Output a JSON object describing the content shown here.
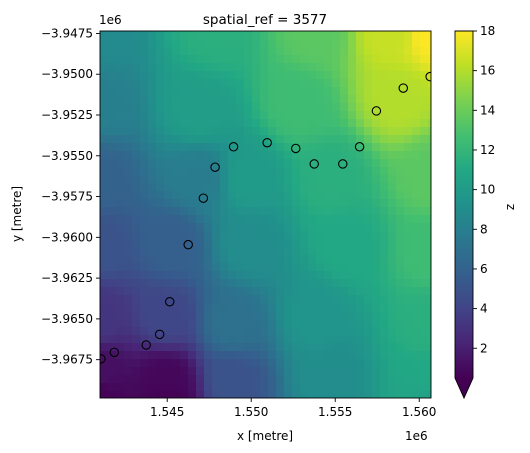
{
  "chart_data": {
    "type": "heatmap",
    "title": "spatial_ref = 3577",
    "xlabel": "x [metre]",
    "ylabel": "y [metre]",
    "x_offset_label": "1e6",
    "y_offset_label": "1e6",
    "xlim": [
      1.541,
      1.5607
    ],
    "ylim": [
      -3.96985,
      -3.94735
    ],
    "x_ticks": [
      1.545,
      1.55,
      1.555,
      1.56
    ],
    "x_tick_labels": [
      "1.545",
      "1.550",
      "1.555",
      "1.560"
    ],
    "y_ticks": [
      -3.9675,
      -3.965,
      -3.9625,
      -3.96,
      -3.9575,
      -3.955,
      -3.9525,
      -3.95,
      -3.9475
    ],
    "y_tick_labels": [
      "−3.9675",
      "−3.9650",
      "−3.9625",
      "−3.9600",
      "−3.9575",
      "−3.9550",
      "−3.9525",
      "−3.9500",
      "−3.9475"
    ],
    "colorbar": {
      "label": "z",
      "vmin": 0.5,
      "vmax": 18,
      "ticks": [
        2,
        4,
        6,
        8,
        10,
        12,
        14,
        16,
        18
      ],
      "tick_labels": [
        "2",
        "4",
        "6",
        "8",
        "10",
        "12",
        "14",
        "16",
        "18"
      ],
      "extend": "min",
      "colormap": "viridis"
    },
    "points": [
      {
        "x": 1.54105,
        "y": -3.96745
      },
      {
        "x": 1.54185,
        "y": -3.96705
      },
      {
        "x": 1.54375,
        "y": -3.9666
      },
      {
        "x": 1.54455,
        "y": -3.96595
      },
      {
        "x": 1.54515,
        "y": -3.96395
      },
      {
        "x": 1.54625,
        "y": -3.96045
      },
      {
        "x": 1.54715,
        "y": -3.9576
      },
      {
        "x": 1.54785,
        "y": -3.9557
      },
      {
        "x": 1.54895,
        "y": -3.95445
      },
      {
        "x": 1.55095,
        "y": -3.9542
      },
      {
        "x": 1.55265,
        "y": -3.95455
      },
      {
        "x": 1.55375,
        "y": -3.9555
      },
      {
        "x": 1.55545,
        "y": -3.9555
      },
      {
        "x": 1.55645,
        "y": -3.95445
      },
      {
        "x": 1.55745,
        "y": -3.95225
      },
      {
        "x": 1.55905,
        "y": -3.95085
      },
      {
        "x": 1.56065,
        "y": -3.95015
      }
    ]
  }
}
